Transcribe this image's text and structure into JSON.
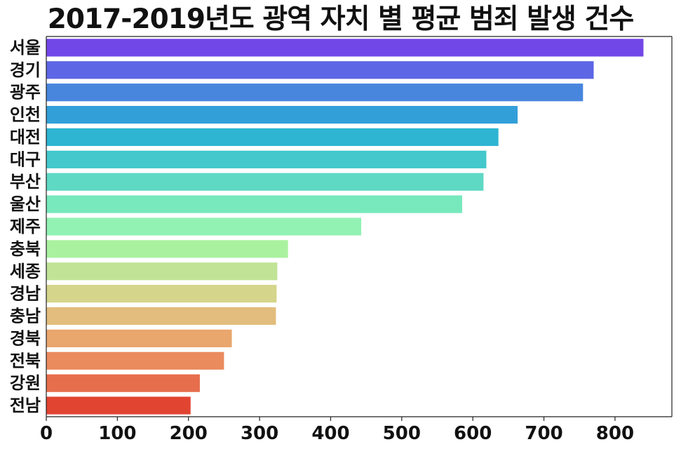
{
  "chart_data": {
    "type": "bar",
    "orientation": "horizontal",
    "title": "2017-2019년도 광역 자치 별 평균 범죄 발생 건수",
    "xlabel": "",
    "ylabel": "",
    "categories": [
      "서울",
      "경기",
      "광주",
      "인천",
      "대전",
      "대구",
      "부산",
      "울산",
      "제주",
      "충북",
      "세종",
      "경남",
      "충남",
      "경북",
      "전북",
      "강원",
      "전남"
    ],
    "values": [
      840,
      770,
      755,
      663,
      636,
      619,
      615,
      585,
      443,
      340,
      325,
      324,
      323,
      261,
      250,
      216,
      203
    ],
    "xlim": [
      0,
      880
    ],
    "xticks": [
      0,
      100,
      200,
      300,
      400,
      500,
      600,
      700,
      800
    ],
    "grid": false,
    "legend": "none",
    "colors": [
      "#7247e7",
      "#5d66e5",
      "#4886de",
      "#339fd8",
      "#2db5d1",
      "#44c8cb",
      "#5ed9c4",
      "#77e9bd",
      "#91f2b4",
      "#a9f19f",
      "#c1e396",
      "#d5d58b",
      "#e2bd7d",
      "#e9a66d",
      "#ea8b5e",
      "#e76e4c",
      "#e24432"
    ]
  }
}
